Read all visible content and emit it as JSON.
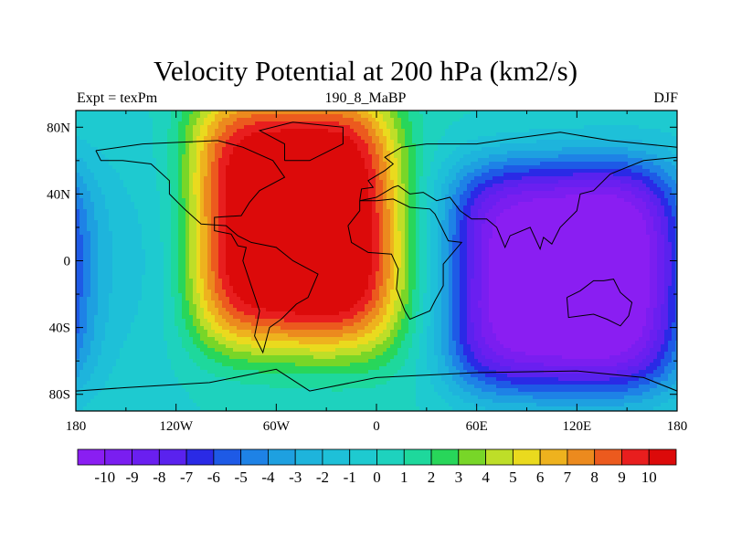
{
  "chart_data": {
    "type": "heatmap",
    "title": "Velocity Potential at 200 hPa (km2/s)",
    "left_string": "Expt = texPm",
    "center_string": "190_8_MaBP",
    "right_string": "DJF",
    "x_range": [
      -180,
      180
    ],
    "y_range": [
      -90,
      90
    ],
    "x_ticks": [
      {
        "value": -180,
        "label": "180"
      },
      {
        "value": -120,
        "label": "120W"
      },
      {
        "value": -60,
        "label": "60W"
      },
      {
        "value": 0,
        "label": "0"
      },
      {
        "value": 60,
        "label": "60E"
      },
      {
        "value": 120,
        "label": "120E"
      },
      {
        "value": 180,
        "label": "180"
      }
    ],
    "y_ticks": [
      {
        "value": 80,
        "label": "80N"
      },
      {
        "value": 40,
        "label": "40N"
      },
      {
        "value": 0,
        "label": "0"
      },
      {
        "value": -40,
        "label": "40S"
      },
      {
        "value": -80,
        "label": "80S"
      }
    ],
    "colorbar": {
      "levels": [
        -10,
        -9,
        -8,
        -7,
        -6,
        -5,
        -4,
        -3,
        -2,
        -1,
        0,
        1,
        2,
        3,
        4,
        5,
        6,
        7,
        8,
        9,
        10
      ],
      "labels": [
        "-10",
        "-9",
        "-8",
        "-7",
        "-6",
        "-5",
        "-4",
        "-3",
        "-2",
        "-1",
        "0",
        "1",
        "2",
        "3",
        "4",
        "5",
        "6",
        "7",
        "8",
        "9",
        "10"
      ],
      "colors": [
        "#8a1ef2",
        "#7a1ef0",
        "#6a1ff0",
        "#5a22ee",
        "#2a2ae6",
        "#1e5ae6",
        "#1e82e6",
        "#1ea0e0",
        "#1eb4dc",
        "#1ec0d8",
        "#1ecad0",
        "#1ed2be",
        "#1ed89c",
        "#28d65a",
        "#78d628",
        "#bede28",
        "#eada1e",
        "#eeb21e",
        "#ec8a1e",
        "#ec5a1e",
        "#e81e1e",
        "#dc0a0a"
      ]
    },
    "features": [
      {
        "type": "high",
        "lon": -50,
        "lat": 25,
        "peak": 10.5
      },
      {
        "type": "low",
        "lon": 110,
        "lat": -10,
        "peak": -10.5
      }
    ]
  }
}
